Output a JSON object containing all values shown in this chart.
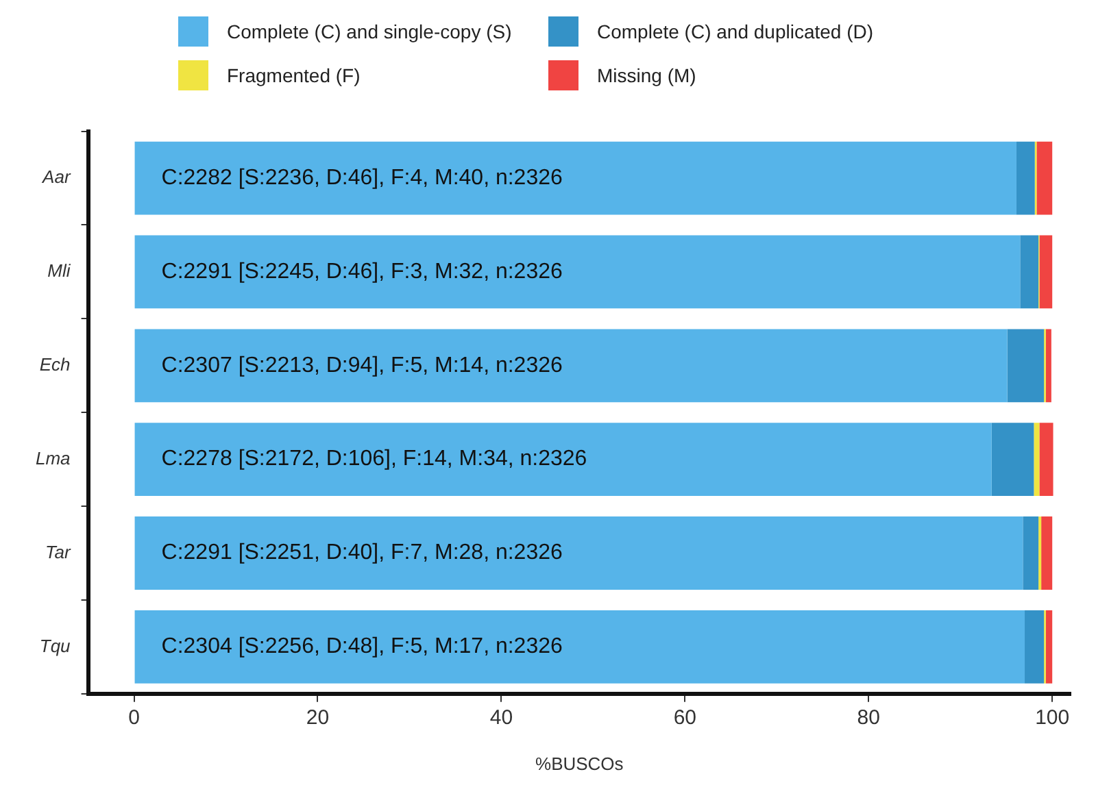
{
  "chart_data": {
    "type": "bar",
    "orientation": "horizontal",
    "stacked": true,
    "legend": "top",
    "xlabel": "%BUSCOs",
    "categories": [
      "Aar",
      "Mli",
      "Ech",
      "Lma",
      "Tar",
      "Tqu"
    ],
    "series": [
      {
        "name": "Complete (C) and single-copy (S)",
        "color": "#56b4e9",
        "values": [
          96.1,
          96.5,
          95.1,
          93.4,
          96.8,
          97.0
        ]
      },
      {
        "name": "Complete (C) and duplicated (D)",
        "color": "#3492c7",
        "values": [
          2.0,
          2.0,
          4.0,
          4.6,
          1.7,
          2.1
        ]
      },
      {
        "name": "Fragmented (F)",
        "color": "#f0e442",
        "values": [
          0.2,
          0.1,
          0.2,
          0.6,
          0.3,
          0.2
        ]
      },
      {
        "name": "Missing (M)",
        "color": "#f04442",
        "values": [
          1.7,
          1.4,
          0.6,
          1.5,
          1.2,
          0.7
        ]
      }
    ],
    "xlim": [
      -5,
      102
    ],
    "xticks": [
      0,
      20,
      40,
      60,
      80,
      100
    ],
    "annotations": [
      {
        "text": "C:2282 [S:2236, D:46], F:4, M:40, n:2326",
        "y": "Aar"
      },
      {
        "text": "C:2291 [S:2245, D:46], F:3, M:32, n:2326",
        "y": "Mli"
      },
      {
        "text": "C:2307 [S:2213, D:94], F:5, M:14, n:2326",
        "y": "Ech"
      },
      {
        "text": "C:2278 [S:2172, D:106], F:14, M:34, n:2326",
        "y": "Lma"
      },
      {
        "text": "C:2291 [S:2251, D:40], F:7, M:28, n:2326",
        "y": "Tar"
      },
      {
        "text": "C:2304 [S:2256, D:48], F:5, M:17, n:2326",
        "y": "Tqu"
      }
    ]
  }
}
